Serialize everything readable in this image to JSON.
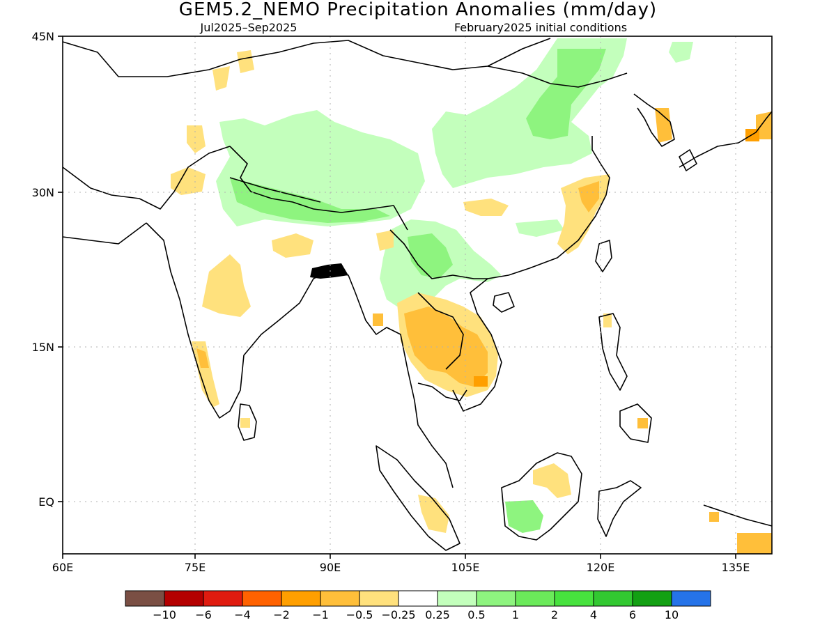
{
  "title": "GEM5.2_NEMO Precipitation Anomalies (mm/day)",
  "subtitle_left": "Jul2025–Sep2025",
  "subtitle_right": "February2025 initial conditions",
  "axes": {
    "x_ticks": [
      "60E",
      "75E",
      "90E",
      "105E",
      "120E",
      "135E"
    ],
    "y_ticks": [
      "45N",
      "30N",
      "15N",
      "EQ"
    ]
  },
  "colorbar": {
    "colors": [
      "#7a4f44",
      "#b40000",
      "#e01b0f",
      "#ff6200",
      "#ff9f00",
      "#ffbf3a",
      "#ffe17d",
      "#ffffff",
      "#c3ffbc",
      "#8ef47f",
      "#6bea5a",
      "#47e23e",
      "#32c831",
      "#13a013",
      "#2573e8"
    ],
    "labels": [
      "−10",
      "−6",
      "−4",
      "−2",
      "−1",
      "−0.5",
      "−0.25",
      "0.25",
      "0.5",
      "1",
      "2",
      "4",
      "6",
      "10"
    ]
  }
}
